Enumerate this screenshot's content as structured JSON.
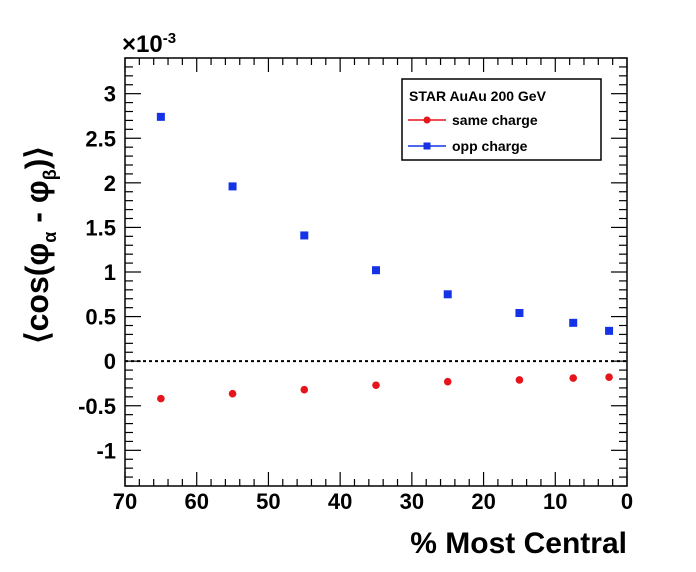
{
  "chart_data": {
    "type": "scatter",
    "xlabel": "% Most Central",
    "ylabel": "⟨cos(φα - φβ)⟩",
    "ylabel_parts": {
      "open": "⟨cos(φ",
      "sub_alpha": "α",
      "mid": " - φ",
      "sub_beta": "β",
      "close": ")⟩"
    },
    "exponent": {
      "base": "×10",
      "power": "-3"
    },
    "xlim": [
      70,
      0
    ],
    "ylim": [
      -1.4,
      3.4
    ],
    "x_ticks": [
      70,
      60,
      50,
      40,
      30,
      20,
      10,
      0
    ],
    "x_tick_labels": [
      "70",
      "60",
      "50",
      "40",
      "30",
      "20",
      "10",
      "0"
    ],
    "y_ticks": [
      -1,
      -0.5,
      0,
      0.5,
      1,
      1.5,
      2,
      2.5,
      3
    ],
    "y_tick_labels": [
      "-1",
      "-0.5",
      "0",
      "0.5",
      "1",
      "1.5",
      "2",
      "2.5",
      "3"
    ],
    "zero_line": true,
    "grid": false,
    "legend": {
      "position": "top-right",
      "title": "STAR  AuAu 200 GeV"
    },
    "series": [
      {
        "name": "same charge",
        "marker": "circle",
        "color": "#e8141c",
        "x": [
          65,
          55,
          45,
          35,
          25,
          15,
          7.5,
          2.5
        ],
        "y": [
          -0.42,
          -0.365,
          -0.32,
          -0.27,
          -0.23,
          -0.21,
          -0.19,
          -0.18
        ]
      },
      {
        "name": "opp charge",
        "marker": "square",
        "color": "#1432e6",
        "x": [
          65,
          55,
          45,
          35,
          25,
          15,
          7.5,
          2.5
        ],
        "y": [
          2.74,
          1.96,
          1.41,
          1.02,
          0.75,
          0.54,
          0.43,
          0.34
        ]
      }
    ]
  }
}
